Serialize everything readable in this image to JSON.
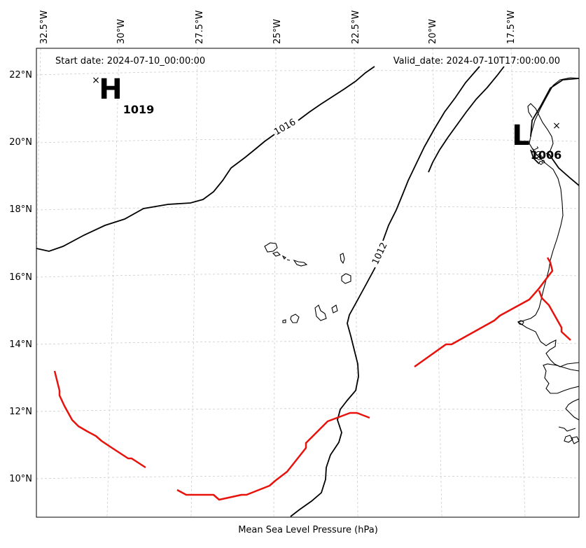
{
  "lon_labels": [
    "32.5°W",
    "30°W",
    "27.5°W",
    "25°W",
    "22.5°W",
    "20°W",
    "17.5°W"
  ],
  "lat_labels": [
    "22°N",
    "20°N",
    "18°N",
    "16°N",
    "14°N",
    "12°N",
    "10°N"
  ],
  "start_date": "Start date: 2024-07-10_00:00:00",
  "valid_date": "Valid_date: 2024-07-10T17:00:00.00",
  "high": {
    "letter": "H",
    "value": "1019"
  },
  "low": {
    "letter": "L",
    "value": "1006"
  },
  "isobar_labels": [
    "1016",
    "1012",
    "1008"
  ],
  "caption": "Mean Sea Level Pressure (hPa)",
  "colors": {
    "isobar": "#000000",
    "front": "#e8120c",
    "grid": "#cccccc",
    "land": "#000000"
  }
}
